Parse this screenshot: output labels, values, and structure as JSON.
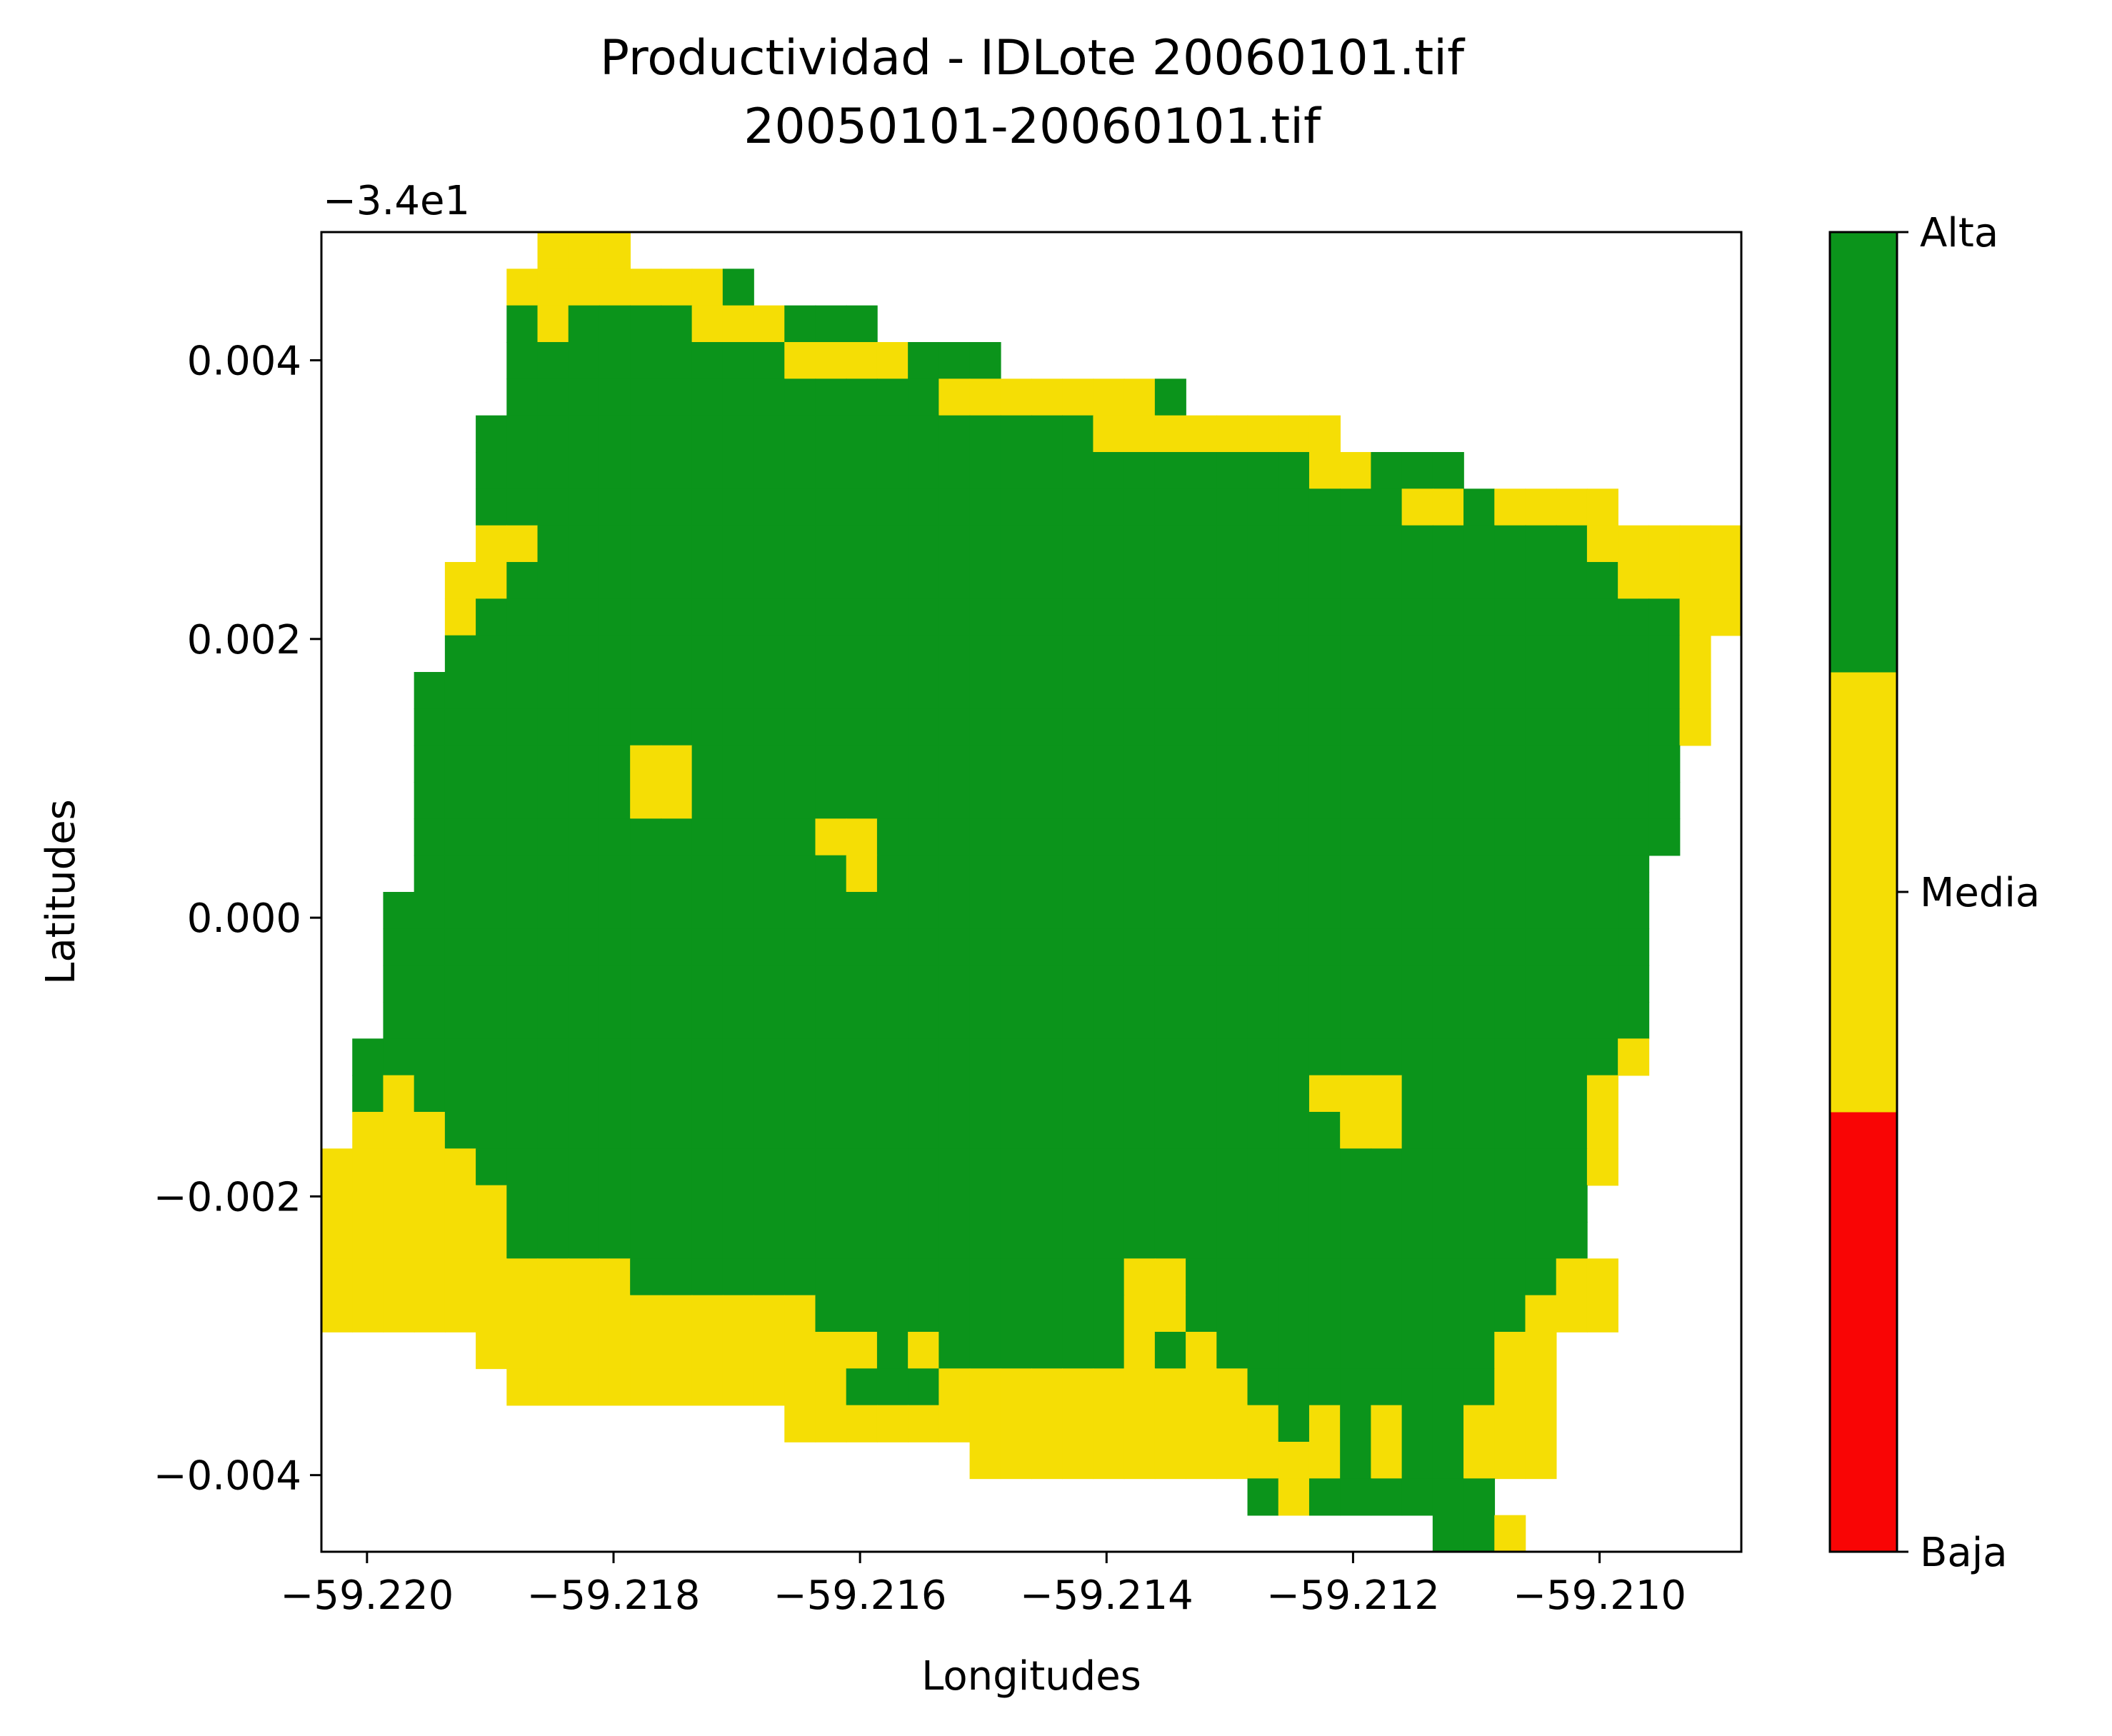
{
  "chart_data": {
    "type": "heatmap",
    "title_line1": "Productividad - IDLote 20060101.tif",
    "title_line2": "20050101-20060101.tif",
    "xlabel": "Longitudes",
    "ylabel": "Latitudes",
    "y_offset_label": "−3.4e1",
    "xlim": [
      -59.22037,
      -59.20885
    ],
    "ylim": [
      -0.00455,
      0.00492
    ],
    "x_ticks": [
      {
        "value": -59.22,
        "label": "−59.220"
      },
      {
        "value": -59.218,
        "label": "−59.218"
      },
      {
        "value": -59.216,
        "label": "−59.216"
      },
      {
        "value": -59.214,
        "label": "−59.214"
      },
      {
        "value": -59.212,
        "label": "−59.212"
      },
      {
        "value": -59.21,
        "label": "−59.210"
      }
    ],
    "y_ticks": [
      {
        "value": 0.004,
        "label": "0.004"
      },
      {
        "value": 0.002,
        "label": "0.002"
      },
      {
        "value": 0.0,
        "label": "0.000"
      },
      {
        "value": -0.002,
        "label": "−0.002"
      },
      {
        "value": -0.004,
        "label": "−0.004"
      }
    ],
    "colorbar": {
      "classes": [
        {
          "name": "Baja",
          "value": 1,
          "color": "#f90505"
        },
        {
          "name": "Media",
          "value": 2,
          "color": "#f5de05"
        },
        {
          "name": "Alta",
          "value": 3,
          "color": "#0b941b"
        }
      ],
      "ticks": [
        "Alta",
        "Media",
        "Baja"
      ]
    },
    "grid": false,
    "cell_legend": {
      "0": "no data",
      "1": "Baja",
      "2": "Media",
      "3": "Alta"
    },
    "raster_rows": [
      "0000000222000000000000000000000000000000000000",
      "0000002222222300000000000000000000000000000000",
      "0000003233332223330000000000000000000000000000",
      "0000003333333332222333000000000000000000000000",
      "0000003333333333333322222223000000000000000000",
      "0000033333333333333333333222222220000000000000",
      "0000033333333333333333333333333322333000000000",
      "0000033333333333333333333333333333322322220000",
      "0000022333333333333333333333333333333333322222",
      "0000223333333333333333333333333333333333332222",
      "0000233333333333333333333333333333333333333322",
      "0000333333333333333333333333333333333333333320",
      "0003333333333333333333333333333333333333333320",
      "0003333333333333333333333333333333333333333320",
      "0003333333223333333333333333333333333333333300",
      "0003333333223333333333333333333333333333333300",
      "0003333333333333223333333333333333333333333300",
      "0003333333333333323333333333333333333333333000",
      "0033333333333333333333333333333333333333333000",
      "0033333333333333333333333333333333333333333000",
      "0033333333333333333333333333333333333333333000",
      "0033333333333333333333333333333333333333333000",
      "0333333333333333333333333333333333333333332000",
      "0323333333333333333333333333333322233333320000",
      "0222333333333333333333333333333332233333320000",
      "2222233333333333333333333333333333333333320000",
      "2222223333333333333333333333333333333333300000",
      "2222223333333333333333333333333333333333300000",
      "2222222222333333333333333322333333333333220000",
      "2222222222222222333333333322333333333332220000",
      "0000022222222222223233333323233333333322000000",
      "0000002222222222233322222222223333333322000000",
      "0000000000000002222222222222222323233222000000",
      "0000000000000000000002222222222223233222000000",
      "0000000000000000000000000000003233333300000000",
      "0000000000000000000000000000000000003320000000"
    ]
  }
}
